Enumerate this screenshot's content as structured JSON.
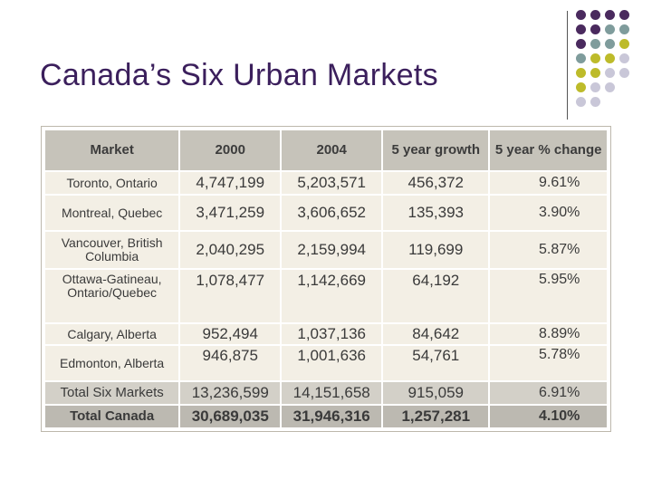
{
  "slide": {
    "title": "Canada’s Six Urban Markets",
    "dot_colors": [
      "#4a2a5e",
      "#7f9c9c",
      "#bdbb2a",
      "#c9c7d8"
    ]
  },
  "table": {
    "headers": [
      "Market",
      "2000",
      "2004",
      "5 year growth",
      "5 year % change"
    ],
    "rows": [
      {
        "market": "Toronto, Ontario",
        "y2000": "4,747,199",
        "y2004": "5,203,571",
        "growth": "456,372",
        "change": "9.61%"
      },
      {
        "market": "Montreal, Quebec",
        "y2000": "3,471,259",
        "y2004": "3,606,652",
        "growth": "135,393",
        "change": "3.90%"
      },
      {
        "market": "Vancouver, British Columbia",
        "y2000": "2,040,295",
        "y2004": "2,159,994",
        "growth": "119,699",
        "change": "5.87%"
      },
      {
        "market": "Ottawa-Gatineau, Ontario/Quebec",
        "y2000": "1,078,477",
        "y2004": "1,142,669",
        "growth": "64,192",
        "change": "5.95%"
      },
      {
        "market": "Calgary, Alberta",
        "y2000": "952,494",
        "y2004": "1,037,136",
        "growth": "84,642",
        "change": "8.89%"
      },
      {
        "market": "Edmonton, Alberta",
        "y2000": "946,875",
        "y2004": "1,001,636",
        "growth": "54,761",
        "change": "5.78%"
      }
    ],
    "total_six": {
      "market": "Total Six Markets",
      "y2000": "13,236,599",
      "y2004": "14,151,658",
      "growth": "915,059",
      "change": "6.91%"
    },
    "total_canada": {
      "market": "Total Canada",
      "y2000": "30,689,035",
      "y2004": "31,946,316",
      "growth": "1,257,281",
      "change": "4.10%"
    }
  }
}
